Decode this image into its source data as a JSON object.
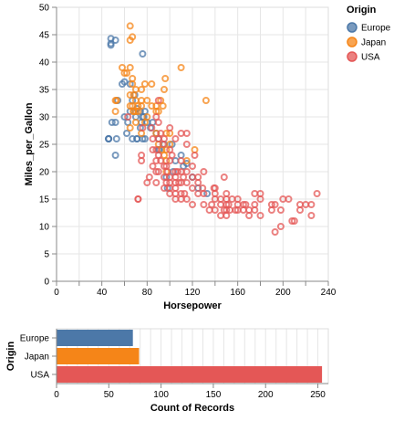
{
  "chart_data": [
    {
      "type": "scatter",
      "title": "",
      "xlabel": "Horsepower",
      "ylabel": "Miles_per_Gallon",
      "xlim": [
        0,
        240
      ],
      "ylim": [
        0,
        50
      ],
      "x_ticks": [
        "0",
        "40",
        "80",
        "120",
        "160",
        "200",
        "240"
      ],
      "y_ticks": [
        "0",
        "5",
        "10",
        "15",
        "20",
        "25",
        "30",
        "35",
        "40",
        "45",
        "50"
      ],
      "grid": true,
      "legend": {
        "title": "Origin",
        "position": "top-right"
      },
      "series": [
        {
          "name": "Europe",
          "color": "#4c78a8",
          "points": [
            [
              46,
              26
            ],
            [
              46,
              26
            ],
            [
              46,
              26
            ],
            [
              48,
              43.4
            ],
            [
              48,
              43.1
            ],
            [
              48,
              44.3
            ],
            [
              52,
              44
            ],
            [
              52,
              29
            ],
            [
              49,
              29
            ],
            [
              52,
              23
            ],
            [
              53,
              26
            ],
            [
              58,
              36
            ],
            [
              60,
              36.4
            ],
            [
              62,
              27
            ],
            [
              65,
              36
            ],
            [
              67,
              33
            ],
            [
              67,
              26
            ],
            [
              70,
              30
            ],
            [
              71,
              26
            ],
            [
              71,
              26
            ],
            [
              74,
              31
            ],
            [
              75,
              29
            ],
            [
              76,
              30
            ],
            [
              76,
              26
            ],
            [
              76,
              41.5
            ],
            [
              78,
              31
            ],
            [
              80,
              29
            ],
            [
              78,
              26
            ],
            [
              83,
              28
            ],
            [
              85,
              29
            ],
            [
              88,
              27
            ],
            [
              90,
              24
            ],
            [
              90,
              26
            ],
            [
              91,
              24
            ],
            [
              95,
              25
            ],
            [
              97,
              19
            ],
            [
              98,
              17
            ],
            [
              102,
              25
            ],
            [
              103,
              20
            ],
            [
              105,
              22
            ],
            [
              110,
              23
            ],
            [
              112,
              21
            ],
            [
              115,
              21.5
            ],
            [
              120,
              19
            ],
            [
              125,
              17
            ],
            [
              133,
              16
            ],
            [
              65,
              31
            ],
            [
              69,
              34
            ],
            [
              71,
              31.5
            ],
            [
              74,
              28
            ],
            [
              77,
              30
            ],
            [
              54,
              33
            ],
            [
              60,
              30
            ],
            [
              63,
              29
            ]
          ]
        },
        {
          "name": "Japan",
          "color": "#f58518",
          "points": [
            [
              52,
              33
            ],
            [
              52,
              31
            ],
            [
              53,
              33
            ],
            [
              58,
              39
            ],
            [
              60,
              38
            ],
            [
              62,
              38
            ],
            [
              65,
              46.6
            ],
            [
              65,
              44
            ],
            [
              67,
              44.6
            ],
            [
              65,
              39
            ],
            [
              67,
              36
            ],
            [
              67,
              37
            ],
            [
              65,
              34
            ],
            [
              65,
              32
            ],
            [
              67,
              32
            ],
            [
              68,
              34
            ],
            [
              68,
              31
            ],
            [
              68,
              31
            ],
            [
              70,
              31
            ],
            [
              70,
              29
            ],
            [
              70,
              35
            ],
            [
              72,
              31
            ],
            [
              72,
              32
            ],
            [
              75,
              33
            ],
            [
              75,
              32
            ],
            [
              75,
              27
            ],
            [
              75,
              35
            ],
            [
              78,
              29
            ],
            [
              78,
              36
            ],
            [
              80,
              33
            ],
            [
              80,
              30
            ],
            [
              84,
              32
            ],
            [
              84,
              36
            ],
            [
              88,
              32
            ],
            [
              88,
              27
            ],
            [
              90,
              31
            ],
            [
              92,
              33
            ],
            [
              93,
              24
            ],
            [
              94,
              32
            ],
            [
              95,
              23
            ],
            [
              95,
              35
            ],
            [
              96,
              37
            ],
            [
              97,
              27
            ],
            [
              97,
              22
            ],
            [
              97,
              24
            ],
            [
              100,
              25
            ],
            [
              100,
              27
            ],
            [
              110,
              39
            ],
            [
              115,
              22
            ],
            [
              122,
              24
            ],
            [
              132,
              33
            ],
            [
              65,
              28
            ],
            [
              70,
              33
            ],
            [
              88,
              31
            ],
            [
              90,
              25
            ],
            [
              97,
              20
            ]
          ]
        },
        {
          "name": "USA",
          "color": "#e45756",
          "points": [
            [
              72,
              15
            ],
            [
              72,
              15
            ],
            [
              75,
              23
            ],
            [
              75,
              22
            ],
            [
              80,
              18
            ],
            [
              82,
              19
            ],
            [
              84,
              28
            ],
            [
              85,
              21
            ],
            [
              85,
              24
            ],
            [
              88,
              18
            ],
            [
              88,
              20
            ],
            [
              88,
              22
            ],
            [
              90,
              20
            ],
            [
              90,
              29
            ],
            [
              90,
              33
            ],
            [
              90,
              26
            ],
            [
              92,
              27
            ],
            [
              95,
              17
            ],
            [
              95,
              19
            ],
            [
              95,
              21
            ],
            [
              97,
              18
            ],
            [
              100,
              17
            ],
            [
              100,
              16
            ],
            [
              100,
              18
            ],
            [
              100,
              22
            ],
            [
              100,
              19
            ],
            [
              100,
              24
            ],
            [
              105,
              18
            ],
            [
              105,
              16
            ],
            [
              105,
              20
            ],
            [
              105,
              19
            ],
            [
              105,
              15
            ],
            [
              107,
              20
            ],
            [
              108,
              18
            ],
            [
              110,
              16
            ],
            [
              110,
              18
            ],
            [
              110,
              20
            ],
            [
              110,
              22
            ],
            [
              110,
              15
            ],
            [
              112,
              19
            ],
            [
              113,
              16
            ],
            [
              115,
              18
            ],
            [
              115,
              27
            ],
            [
              115,
              15
            ],
            [
              120,
              19
            ],
            [
              120,
              17
            ],
            [
              120,
              14
            ],
            [
              125,
              18
            ],
            [
              129,
              17
            ],
            [
              130,
              16
            ],
            [
              130,
              14
            ],
            [
              135,
              13
            ],
            [
              137,
              14
            ],
            [
              139,
              17
            ],
            [
              140,
              13
            ],
            [
              140,
              15
            ],
            [
              140,
              16
            ],
            [
              145,
              14
            ],
            [
              145,
              15
            ],
            [
              145,
              12
            ],
            [
              148,
              13
            ],
            [
              148,
              19
            ],
            [
              150,
              14
            ],
            [
              150,
              13
            ],
            [
              150,
              12
            ],
            [
              150,
              15
            ],
            [
              152,
              14
            ],
            [
              153,
              13
            ],
            [
              155,
              15
            ],
            [
              158,
              13
            ],
            [
              160,
              15
            ],
            [
              160,
              13
            ],
            [
              165,
              14
            ],
            [
              165,
              13
            ],
            [
              167,
              14
            ],
            [
              170,
              13
            ],
            [
              170,
              12
            ],
            [
              175,
              14
            ],
            [
              175,
              13
            ],
            [
              180,
              16
            ],
            [
              180,
              12
            ],
            [
              180,
              15
            ],
            [
              190,
              13
            ],
            [
              190,
              14
            ],
            [
              193,
              14
            ],
            [
              193,
              9
            ],
            [
              198,
              13
            ],
            [
              198,
              10
            ],
            [
              200,
              15
            ],
            [
              205,
              15
            ],
            [
              208,
              11
            ],
            [
              210,
              11
            ],
            [
              215,
              14
            ],
            [
              215,
              13
            ],
            [
              220,
              14
            ],
            [
              225,
              14
            ],
            [
              225,
              12
            ],
            [
              230,
              16
            ],
            [
              95,
              26
            ],
            [
              100,
              28
            ],
            [
              105,
              26
            ],
            [
              110,
              27
            ],
            [
              115,
              25
            ],
            [
              115,
              20
            ],
            [
              120,
              21
            ],
            [
              122,
              23
            ],
            [
              125,
              19
            ],
            [
              130,
              20
            ],
            [
              85,
              26
            ],
            [
              88,
              24
            ],
            [
              90,
              23
            ],
            [
              92,
              22
            ],
            [
              94,
              25
            ],
            [
              97,
              21
            ],
            [
              98,
              20
            ],
            [
              102,
              23
            ],
            [
              105,
              17
            ],
            [
              125,
              16
            ],
            [
              140,
              17
            ],
            [
              150,
              16
            ],
            [
              160,
              14
            ],
            [
              175,
              16
            ],
            [
              88,
              30
            ],
            [
              76,
              28
            ],
            [
              63,
              30
            ]
          ]
        }
      ]
    },
    {
      "type": "bar",
      "orientation": "horizontal",
      "title": "",
      "xlabel": "Count of Records",
      "ylabel": "Origin",
      "xlim": [
        0,
        260
      ],
      "x_ticks": [
        "0",
        "50",
        "100",
        "150",
        "200",
        "250"
      ],
      "grid": true,
      "categories": [
        "Europe",
        "Japan",
        "USA"
      ],
      "values": [
        73,
        79,
        254
      ],
      "colors": [
        "#4c78a8",
        "#f58518",
        "#e45756"
      ]
    }
  ]
}
